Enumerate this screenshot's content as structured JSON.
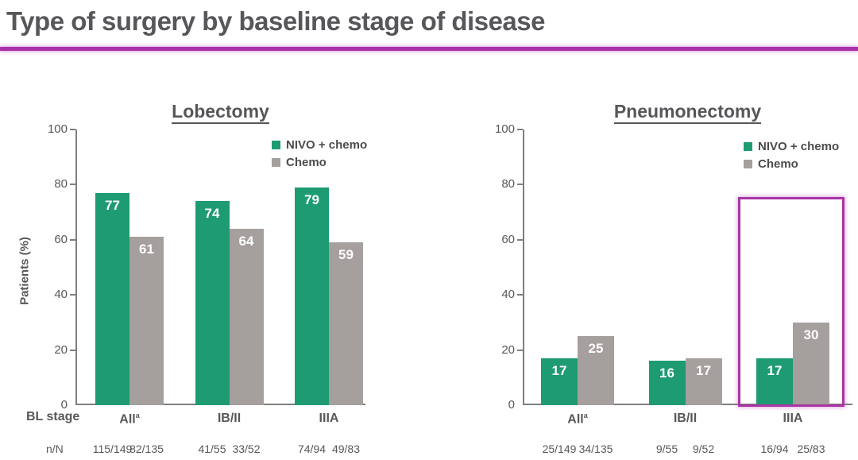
{
  "page": {
    "title": "Type of surgery by baseline stage of disease"
  },
  "row_labels": {
    "bl_stage": "BL stage",
    "n_over_N": "n/N"
  },
  "colors": {
    "accent_magenta": "#a832aa",
    "highlight_box": "#a935a4",
    "nivo_green": "#1e9b73",
    "chemo_gray": "#a5a09d",
    "text_gray": "#58585a",
    "axis_gray": "#7f7f7f"
  },
  "chart_data": [
    {
      "type": "bar",
      "title": "Lobectomy",
      "ylabel": "Patients (%)",
      "xlabel": "BL stage",
      "ylim": [
        0,
        100
      ],
      "yticks": [
        0,
        20,
        40,
        60,
        80,
        100
      ],
      "grid": false,
      "legend_position": "upper right",
      "categories": [
        "All",
        "IB/II",
        "IIIA"
      ],
      "category_superscripts": [
        "a",
        "",
        ""
      ],
      "series": [
        {
          "name": "NIVO + chemo",
          "color": "#1e9b73",
          "values": [
            77,
            74,
            79
          ],
          "n_over_N": [
            "115/149",
            "41/55",
            "74/94"
          ]
        },
        {
          "name": "Chemo",
          "color": "#a5a09d",
          "values": [
            61,
            64,
            59
          ],
          "n_over_N": [
            "82/135",
            "33/52",
            "49/83"
          ]
        }
      ]
    },
    {
      "type": "bar",
      "title": "Pneumonectomy",
      "ylabel": "",
      "xlabel": "BL stage",
      "ylim": [
        0,
        100
      ],
      "yticks": [
        0,
        20,
        40,
        60,
        80,
        100
      ],
      "grid": false,
      "legend_position": "upper right",
      "categories": [
        "All",
        "IB/II",
        "IIIA"
      ],
      "category_superscripts": [
        "a",
        "",
        ""
      ],
      "series": [
        {
          "name": "NIVO + chemo",
          "color": "#1e9b73",
          "values": [
            17,
            16,
            17
          ],
          "n_over_N": [
            "25/149",
            "9/55",
            "16/94"
          ]
        },
        {
          "name": "Chemo",
          "color": "#a5a09d",
          "values": [
            25,
            17,
            30
          ],
          "n_over_N": [
            "34/135",
            "9/52",
            "25/83"
          ]
        }
      ],
      "highlight": {
        "category": "IIIA",
        "color": "#a935a4"
      }
    }
  ]
}
